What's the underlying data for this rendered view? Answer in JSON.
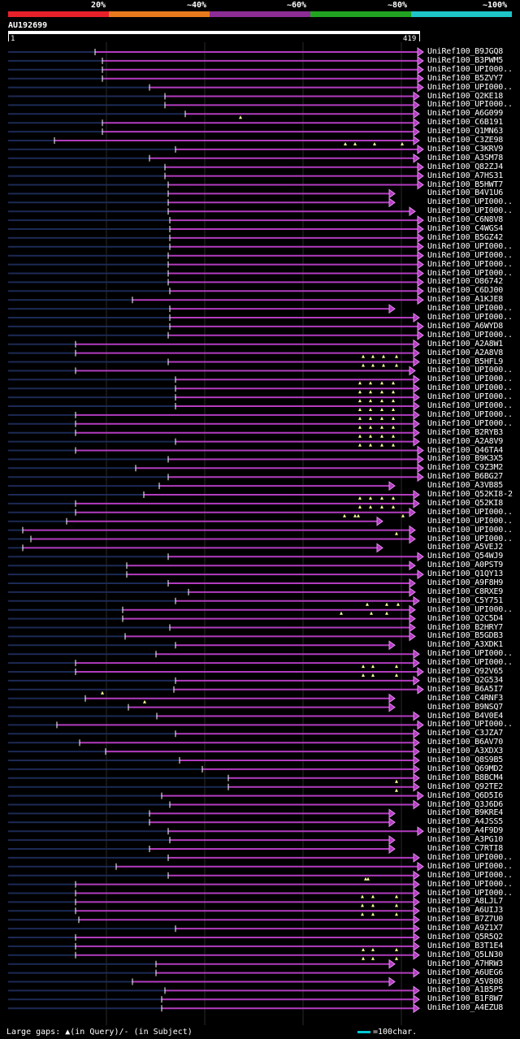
{
  "legend": {
    "labels": [
      "20%",
      "~40%",
      "~60%",
      "~80%",
      "~100%"
    ],
    "colors": [
      "#e8202a",
      "#e87a1e",
      "#8c2d96",
      "#21a321",
      "#1ec4c8"
    ]
  },
  "query": {
    "name": "AU192699",
    "start": "1",
    "end": "419"
  },
  "hits": [
    "UniRef100_B9JGQ8",
    "UniRef100_B3PWM5",
    "UniRef100_UPI000..",
    "UniRef100_B5ZVY7",
    "UniRef100_UPI000..",
    "UniRef100_Q2KE18",
    "UniRef100_UPI000..",
    "UniRef100_A6G099",
    "UniRef100_C6B191",
    "UniRef100_Q1MN63",
    "UniRef100_C3ZE98",
    "UniRef100_C3KRV9",
    "UniRef100_A3SM78",
    "UniRef100_Q82ZJ4",
    "UniRef100_A7HS31",
    "UniRef100_B5HWT7",
    "UniRef100_B4V1U6",
    "UniRef100_UPI000..",
    "UniRef100_UPI000..",
    "UniRef100_C6N8V8",
    "UniRef100_C4WGS4",
    "UniRef100_B5GZ42",
    "UniRef100_UPI000..",
    "UniRef100_UPI000..",
    "UniRef100_UPI000..",
    "UniRef100_UPI000..",
    "UniRef100_O86742",
    "UniRef100_C6DJ00",
    "UniRef100_A1KJE8",
    "UniRef100_UPI000..",
    "UniRef100_UPI000..",
    "UniRef100_A6WYD8",
    "UniRef100_UPI000..",
    "UniRef100_A2A8W1",
    "UniRef100_A2A8V8",
    "UniRef100_B5HFL9",
    "UniRef100_UPI000..",
    "UniRef100_UPI000..",
    "UniRef100_UPI000..",
    "UniRef100_UPI000..",
    "UniRef100_UPI000..",
    "UniRef100_UPI000..",
    "UniRef100_UPI000..",
    "UniRef100_B2RYB3",
    "UniRef100_A2A8V9",
    "UniRef100_Q46TA4",
    "UniRef100_B9K3X5",
    "UniRef100_C9Z3M2",
    "UniRef100_B6BG27",
    "UniRef100_A3VB85",
    "UniRef100_Q52KI8-2",
    "UniRef100_Q52KI8",
    "UniRef100_UPI000..",
    "UniRef100_UPI000..",
    "UniRef100_UPI000..",
    "UniRef100_UPI000..",
    "UniRef100_A5VEJ2",
    "UniRef100_Q54WJ9",
    "UniRef100_A0PST9",
    "UniRef100_Q1QY13",
    "UniRef100_A9F8H9",
    "UniRef100_C8RXE9",
    "UniRef100_C5Y751",
    "UniRef100_UPI000..",
    "UniRef100_Q2C5D4",
    "UniRef100_B2HRY7",
    "UniRef100_B5GDB3",
    "UniRef100_A3XDK1",
    "UniRef100_UPI000..",
    "UniRef100_UPI000..",
    "UniRef100_Q92V65",
    "UniRef100_Q2G534",
    "UniRef100_B6A5I7",
    "UniRef100_C4RNF3",
    "UniRef100_B9NSQ7",
    "UniRef100_B4V0E4",
    "UniRef100_UPI000..",
    "UniRef100_C3JZA7",
    "UniRef100_B6AV70",
    "UniRef100_A3XDX3",
    "UniRef100_Q8S9B5",
    "UniRef100_Q69MD2",
    "UniRef100_B8BCM4",
    "UniRef100_Q92TE2",
    "UniRef100_Q6D5I6",
    "UniRef100_Q3J6D6",
    "UniRef100_B9KRE4",
    "UniRef100_A4JSS5",
    "UniRef100_A4F9D9",
    "UniRef100_A3PG10",
    "UniRef100_C7RTI8",
    "UniRef100_UPI000..",
    "UniRef100_UPI000..",
    "UniRef100_UPI000..",
    "UniRef100_UPI000..",
    "UniRef100_UPI000..",
    "UniRef100_A8LJL7",
    "UniRef100_A6UIJ3",
    "UniRef100_B7Z7U0",
    "UniRef100_A9Z1X7",
    "UniRef100_Q5R5Q2",
    "UniRef100_B3T1E4",
    "UniRef100_Q5LN30",
    "UniRef100_A7HRW3",
    "UniRef100_A6UEG6",
    "UniRef100_A5V808",
    "UniRef100_A1B5P5",
    "UniRef100_B1F8W7",
    "UniRef100_A4EZU8"
  ],
  "footer": {
    "gaps_text": "Large gaps: ▲(in Query)/- (in Subject)",
    "scale_text": "=100char."
  }
}
